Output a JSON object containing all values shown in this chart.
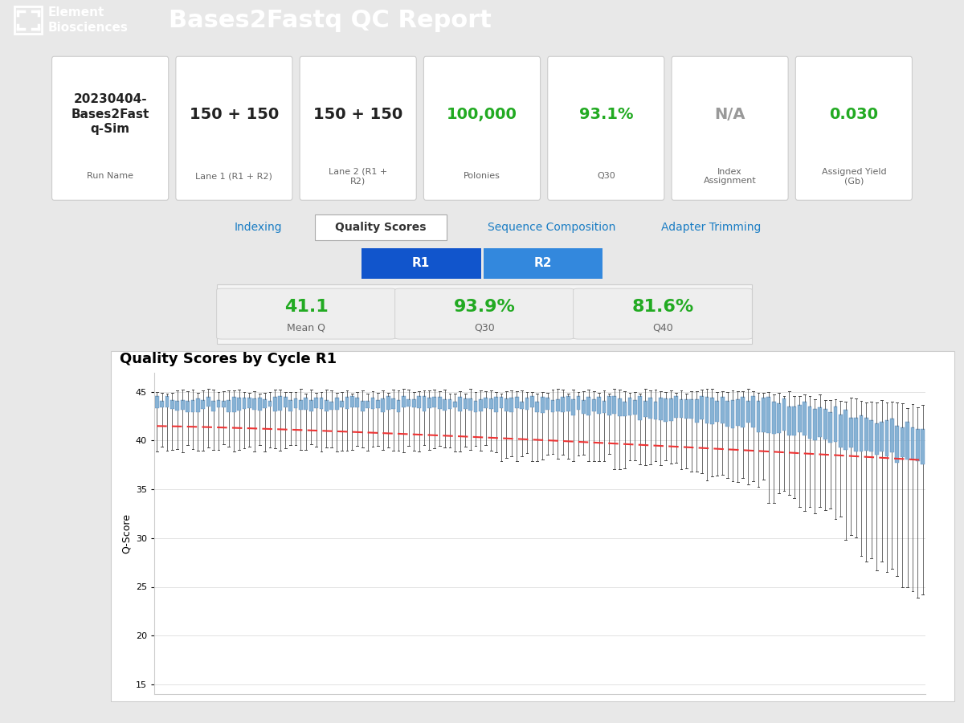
{
  "header_bg": "#111111",
  "header_title": "Bases2Fastq QC Report",
  "page_bg": "#e8e8e8",
  "cards": [
    {
      "main": "20230404-\nBases2Fast\nq-Sim",
      "sub": "Run Name",
      "main_color": "#222222",
      "sub_color": "#666666",
      "main_size": 11
    },
    {
      "main": "150 + 150",
      "sub": "Lane 1 (R1 + R2)",
      "main_color": "#222222",
      "sub_color": "#666666",
      "main_size": 14
    },
    {
      "main": "150 + 150",
      "sub": "Lane 2 (R1 +\nR2)",
      "main_color": "#222222",
      "sub_color": "#666666",
      "main_size": 14
    },
    {
      "main": "100,000",
      "sub": "Polonies",
      "main_color": "#22aa22",
      "sub_color": "#666666",
      "main_size": 14
    },
    {
      "main": "93.1%",
      "sub": "Q30",
      "main_color": "#22aa22",
      "sub_color": "#666666",
      "main_size": 14
    },
    {
      "main": "N/A",
      "sub": "Index\nAssignment",
      "main_color": "#999999",
      "sub_color": "#666666",
      "main_size": 14
    },
    {
      "main": "0.030",
      "sub": "Assigned Yield\n(Gb)",
      "main_color": "#22aa22",
      "sub_color": "#666666",
      "main_size": 14
    }
  ],
  "tabs": [
    "Indexing",
    "Quality Scores",
    "Sequence Composition",
    "Adapter Trimming"
  ],
  "active_tab": 1,
  "tab_colors": [
    "#1a7dc4",
    "#333333",
    "#1a7dc4",
    "#1a7dc4"
  ],
  "stat_boxes": [
    {
      "value": "41.1",
      "label": "Mean Q",
      "color": "#22aa22"
    },
    {
      "value": "93.9%",
      "label": "Q30",
      "color": "#22aa22"
    },
    {
      "value": "81.6%",
      "label": "Q40",
      "color": "#22aa22"
    }
  ],
  "chart_title": "Quality Scores by Cycle R1",
  "chart_ylabel": "Q-Score",
  "chart_bg": "#ffffff",
  "chart_grid_color": "#dddddd",
  "box_color": "#7aaad0",
  "box_edge_color": "#5588bb",
  "median_color": "#ee3333",
  "whisker_color": "#444444",
  "n_cycles": 150,
  "ylim_min": 14,
  "ylim_max": 47,
  "yticks": [
    15,
    20,
    25,
    30,
    35,
    40,
    45
  ]
}
